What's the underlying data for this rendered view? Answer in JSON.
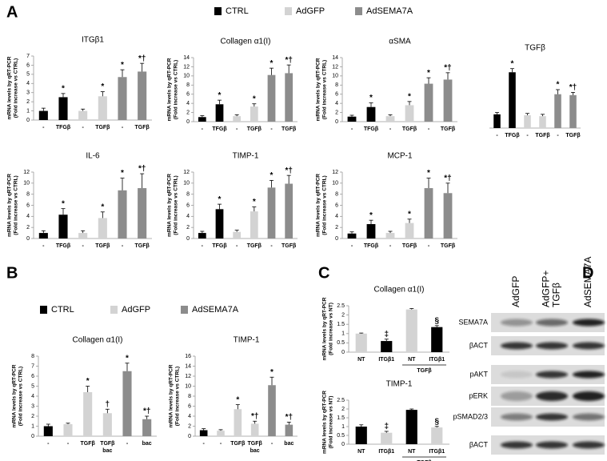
{
  "panels": [
    "A",
    "B",
    "C",
    "D"
  ],
  "legends": [
    [
      {
        "name": "CTRL",
        "color": "#000000"
      },
      {
        "name": "AdGFP",
        "color": "#d3d3d3"
      },
      {
        "name": "AdSEMA7A",
        "color": "#8c8c8c"
      }
    ],
    [
      {
        "name": "CTRL",
        "color": "#000000"
      },
      {
        "name": "AdGFP",
        "color": "#d3d3d3"
      },
      {
        "name": "AdSEMA7A",
        "color": "#8c8c8c"
      }
    ]
  ],
  "chart_data": [
    {
      "type": "bar",
      "title": "ITGβ1",
      "ylabel": [
        "mRNA levels by qRT-PCR",
        "(Fold increase vs CTRL)"
      ],
      "categories": [
        "-",
        "TFGβ",
        "-",
        "TGFβ",
        "-",
        "TGFβ"
      ],
      "values": [
        1.0,
        2.5,
        1.0,
        2.6,
        4.7,
        5.3
      ],
      "errors": [
        0.3,
        0.4,
        0.2,
        0.5,
        0.8,
        0.9
      ],
      "markers": [
        null,
        "*",
        null,
        "*",
        "*",
        "*†"
      ],
      "colors": [
        "#000000",
        "#000000",
        "#d3d3d3",
        "#d3d3d3",
        "#8c8c8c",
        "#8c8c8c"
      ],
      "ylim": [
        0,
        7
      ],
      "yticks": [
        0,
        1,
        2,
        3,
        4,
        5,
        6,
        7
      ]
    },
    {
      "type": "bar",
      "title": "Collagen α1(I)",
      "ylabel": [
        "mRNA levels by qRT-PCR",
        "(Fold increase vs CTRL)"
      ],
      "categories": [
        "-",
        "TFGβ",
        "-",
        "TGFβ",
        "-",
        "TGFβ"
      ],
      "values": [
        1.0,
        3.8,
        1.2,
        3.3,
        10.2,
        10.6
      ],
      "errors": [
        0.3,
        0.9,
        0.3,
        0.6,
        1.5,
        1.8
      ],
      "markers": [
        null,
        "*",
        null,
        "*",
        "*",
        "*†"
      ],
      "colors": [
        "#000000",
        "#000000",
        "#d3d3d3",
        "#d3d3d3",
        "#8c8c8c",
        "#8c8c8c"
      ],
      "ylim": [
        0,
        14
      ],
      "yticks": [
        0,
        2,
        4,
        6,
        8,
        10,
        12,
        14
      ]
    },
    {
      "type": "bar",
      "title": "αSMA",
      "ylabel": [
        "mRNA levels by qRT-PCR",
        "(Fold increase vs CTRL)"
      ],
      "categories": [
        "-",
        "TFGβ",
        "-",
        "TGFβ",
        "-",
        "TGFβ"
      ],
      "values": [
        1.1,
        3.2,
        1.2,
        3.6,
        8.3,
        9.2
      ],
      "errors": [
        0.3,
        0.9,
        0.3,
        0.8,
        1.3,
        1.5
      ],
      "markers": [
        null,
        "*",
        null,
        "*",
        "*",
        "*†"
      ],
      "colors": [
        "#000000",
        "#000000",
        "#d3d3d3",
        "#d3d3d3",
        "#8c8c8c",
        "#8c8c8c"
      ],
      "ylim": [
        0,
        14
      ],
      "yticks": [
        0,
        2,
        4,
        6,
        8,
        10,
        12,
        14
      ]
    },
    {
      "type": "bar",
      "title": "TGFβ",
      "categories": [
        "-",
        "TFGβ",
        "-",
        "TGFβ",
        "-",
        "TGFβ"
      ],
      "values": [
        1.5,
        6.1,
        1.4,
        1.3,
        3.7,
        3.6
      ],
      "errors": [
        0.2,
        0.4,
        0.2,
        0.2,
        0.5,
        0.3
      ],
      "markers": [
        null,
        "*",
        null,
        null,
        "*",
        "*†"
      ],
      "colors": [
        "#000000",
        "#000000",
        "#d3d3d3",
        "#d3d3d3",
        "#8c8c8c",
        "#8c8c8c"
      ],
      "ylim": [
        0,
        7
      ]
    },
    {
      "type": "bar",
      "title": "IL-6",
      "ylabel": [
        "mRNA levels by qRT-PCR",
        "(Fold increase vs CTRL)"
      ],
      "categories": [
        "-",
        "TFGβ",
        "-",
        "TGFβ",
        "-",
        "TGFβ"
      ],
      "values": [
        1.0,
        4.3,
        1.0,
        3.7,
        8.7,
        9.1
      ],
      "errors": [
        0.4,
        1.1,
        0.4,
        1.1,
        2.2,
        2.6
      ],
      "markers": [
        null,
        "*",
        null,
        "*",
        "*",
        "*†"
      ],
      "colors": [
        "#000000",
        "#000000",
        "#d3d3d3",
        "#d3d3d3",
        "#8c8c8c",
        "#8c8c8c"
      ],
      "ylim": [
        0,
        12
      ],
      "yticks": [
        0,
        2,
        4,
        6,
        8,
        10,
        12
      ]
    },
    {
      "type": "bar",
      "title": "TIMP-1",
      "ylabel": [
        "mRNA levels by qRT-PCR",
        "(Fold increase vs CTRL)"
      ],
      "categories": [
        "-",
        "TFGβ",
        "-",
        "TGFβ",
        "-",
        "TGFβ"
      ],
      "values": [
        1.0,
        5.3,
        1.2,
        4.9,
        9.2,
        9.9
      ],
      "errors": [
        0.3,
        0.9,
        0.3,
        0.8,
        1.3,
        1.5
      ],
      "markers": [
        null,
        "*",
        null,
        "*",
        "*",
        "*†"
      ],
      "colors": [
        "#000000",
        "#000000",
        "#d3d3d3",
        "#d3d3d3",
        "#8c8c8c",
        "#8c8c8c"
      ],
      "ylim": [
        0,
        12
      ],
      "yticks": [
        0,
        2,
        4,
        6,
        8,
        10,
        12
      ]
    },
    {
      "type": "bar",
      "title": "MCP-1",
      "ylabel": [
        "mRNA levels by qRT-PCR",
        "(Fold increase vs CTRL)"
      ],
      "categories": [
        "-",
        "TFGβ",
        "-",
        "TGFβ",
        "-",
        "TGFβ"
      ],
      "values": [
        0.9,
        2.6,
        1.0,
        2.8,
        9.1,
        8.2
      ],
      "errors": [
        0.3,
        0.7,
        0.3,
        0.7,
        1.8,
        1.8
      ],
      "markers": [
        null,
        "*",
        null,
        "*",
        "*",
        "*†"
      ],
      "colors": [
        "#000000",
        "#000000",
        "#d3d3d3",
        "#d3d3d3",
        "#8c8c8c",
        "#8c8c8c"
      ],
      "ylim": [
        0,
        12
      ],
      "yticks": [
        0,
        2,
        4,
        6,
        8,
        10,
        12
      ]
    },
    {
      "type": "bar",
      "title": "Collagen α1(I)",
      "ylabel": [
        "mRNA levels by qRT-PCR",
        "(Fold increase vs CTRL)"
      ],
      "categories": [
        "-",
        "-",
        "TGFβ",
        "TGFβ",
        "-",
        "bac"
      ],
      "categories2": [
        null,
        null,
        null,
        "bac",
        null,
        null
      ],
      "values": [
        1.0,
        1.2,
        4.4,
        2.3,
        6.5,
        1.7
      ],
      "errors": [
        0.2,
        0.1,
        0.6,
        0.4,
        0.8,
        0.3
      ],
      "markers": [
        null,
        null,
        "*",
        "†",
        "*",
        "*†"
      ],
      "colors": [
        "#000000",
        "#d3d3d3",
        "#d3d3d3",
        "#d3d3d3",
        "#8c8c8c",
        "#8c8c8c"
      ],
      "ylim": [
        0,
        8
      ],
      "yticks": [
        0,
        1,
        2,
        3,
        4,
        5,
        6,
        7,
        8
      ]
    },
    {
      "type": "bar",
      "title": "TIMP-1",
      "ylabel": [
        "mRNA levels by qRT-PCR",
        "(Fold increase vs CTRL)"
      ],
      "categories": [
        "-",
        "-",
        "TGFβ",
        "TGFβ",
        "-",
        "bac"
      ],
      "categories2": [
        null,
        null,
        null,
        "bac",
        null,
        null
      ],
      "values": [
        1.2,
        1.1,
        5.4,
        2.5,
        10.2,
        2.3
      ],
      "errors": [
        0.3,
        0.2,
        0.9,
        0.5,
        1.6,
        0.5
      ],
      "markers": [
        null,
        null,
        "*",
        "*†",
        "*",
        "*†"
      ],
      "colors": [
        "#000000",
        "#d3d3d3",
        "#d3d3d3",
        "#d3d3d3",
        "#8c8c8c",
        "#8c8c8c"
      ],
      "ylim": [
        0,
        16
      ],
      "yticks": [
        0,
        2,
        4,
        6,
        8,
        10,
        12,
        14,
        16
      ]
    },
    {
      "type": "bar",
      "title": "Collagen α1(I)",
      "ylabel": [
        "mRNA levels by qRT-PCR",
        "(Fold increase vs NT)"
      ],
      "categories": [
        "NT",
        "ITGβ1",
        "NT",
        "ITGβ1"
      ],
      "group_label": "TGFβ",
      "values": [
        1.0,
        0.6,
        2.3,
        1.35
      ],
      "errors": [
        0.03,
        0.1,
        0.05,
        0.08
      ],
      "markers": [
        null,
        "‡",
        null,
        "§"
      ],
      "colors": [
        "#d3d3d3",
        "#000000",
        "#d3d3d3",
        "#000000"
      ],
      "ylim": [
        0,
        2.5
      ],
      "yticks": [
        0,
        0.5,
        1,
        1.5,
        2,
        2.5
      ]
    },
    {
      "type": "bar",
      "title": "TIMP-1",
      "ylabel": [
        "mRNA levels by qRT-PCR",
        "(Fold increase vs NT)"
      ],
      "categories": [
        "NT",
        "ITGβ1",
        "NT",
        "ITGβ1"
      ],
      "group_label": "TGFβ",
      "values": [
        1.0,
        0.65,
        1.95,
        0.95
      ],
      "errors": [
        0.1,
        0.08,
        0.05,
        0.06
      ],
      "markers": [
        null,
        "‡",
        null,
        "§"
      ],
      "colors": [
        "#000000",
        "#d3d3d3",
        "#000000",
        "#d3d3d3"
      ],
      "ylim": [
        0,
        2.5
      ],
      "yticks": [
        0,
        0.5,
        1,
        1.5,
        2,
        2.5
      ]
    }
  ],
  "blot": {
    "lanes": [
      [
        "AdGFP"
      ],
      [
        "AdGFP+",
        "TGFβ"
      ],
      [
        "AdSEMA7A"
      ]
    ],
    "rows": [
      "SEMA7A",
      "βACT",
      "pAKT",
      "pERK",
      "pSMAD2/3",
      "βACT"
    ]
  }
}
